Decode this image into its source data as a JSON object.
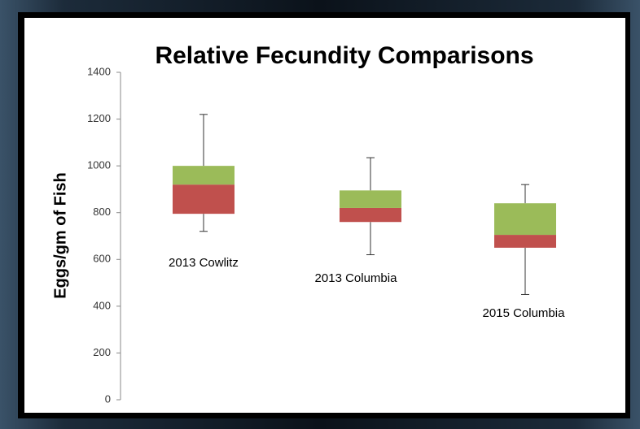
{
  "chart_data": {
    "type": "box",
    "title": "Relative Fecundity Comparisons",
    "y_label": "Eggs/gm of Fish",
    "categories": [
      "2013 Cowlitz",
      "2013 Columbia",
      "2015 Columbia"
    ],
    "boxes": [
      {
        "whisker_low": 720,
        "q1": 795,
        "median": 920,
        "q3": 1000,
        "whisker_high": 1220
      },
      {
        "whisker_low": 620,
        "q1": 760,
        "median": 820,
        "q3": 895,
        "whisker_high": 1035
      },
      {
        "whisker_low": 450,
        "q1": 650,
        "median": 705,
        "q3": 840,
        "whisker_high": 920
      }
    ],
    "lower_color": "#c0504d",
    "upper_color": "#9bbb59",
    "ylim": [
      0,
      1400
    ],
    "yticks": [
      0,
      200,
      400,
      600,
      800,
      1000,
      1200,
      1400
    ]
  }
}
